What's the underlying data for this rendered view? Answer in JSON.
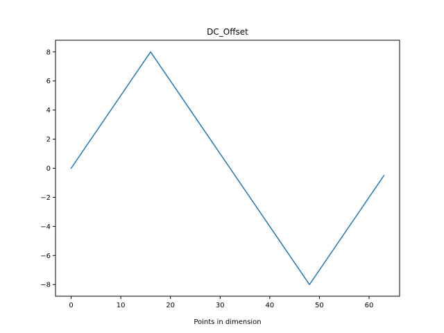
{
  "colors": {
    "line": "#1f77b4",
    "axes": "#000000",
    "background": "#ffffff"
  },
  "chart_data": {
    "type": "line",
    "title": "DC_Offset",
    "xlabel": "Points in dimension",
    "ylabel": "",
    "xlim": [
      -3.15,
      66.15
    ],
    "ylim": [
      -8.8,
      8.8
    ],
    "grid": false,
    "legend": "none",
    "x_ticks": [
      0,
      10,
      20,
      30,
      40,
      50,
      60
    ],
    "y_ticks": [
      -8,
      -6,
      -4,
      -2,
      0,
      2,
      4,
      6,
      8
    ],
    "x_tick_labels": [
      "0",
      "10",
      "20",
      "30",
      "40",
      "50",
      "60"
    ],
    "y_tick_labels": [
      "−8",
      "−6",
      "−4",
      "−2",
      "0",
      "2",
      "4",
      "6",
      "8"
    ],
    "series": [
      {
        "x": [
          0,
          16,
          48,
          63
        ],
        "values": [
          0,
          8,
          -8,
          -0.5
        ]
      }
    ]
  }
}
